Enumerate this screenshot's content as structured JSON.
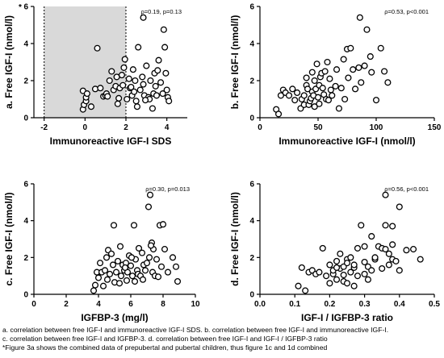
{
  "chart_data": [
    {
      "id": "a",
      "type": "scatter",
      "ylabel": "a. Free IGF-I (nmol/l)",
      "ylabel_superscript": "*",
      "xlabel": "Immunoreactive IGF-I SDS",
      "xlim": [
        -2.5,
        5
      ],
      "ylim": [
        0,
        6
      ],
      "xticks": [
        -2,
        0,
        2,
        4
      ],
      "yticks": [
        0,
        2,
        4,
        6
      ],
      "annotation": "ρ=0.19, p=0.13",
      "shaded_region": [
        -2,
        2
      ],
      "shaded_color": "#d9d9d9",
      "points": [
        [
          -0.1,
          0.45
        ],
        [
          -0.05,
          0.7
        ],
        [
          0.05,
          0.9
        ],
        [
          0.05,
          1.1
        ],
        [
          -0.1,
          1.45
        ],
        [
          0.1,
          1.3
        ],
        [
          0.3,
          0.6
        ],
        [
          0.5,
          1.55
        ],
        [
          0.6,
          3.75
        ],
        [
          0.75,
          1.6
        ],
        [
          0.9,
          1.15
        ],
        [
          1.0,
          1.2
        ],
        [
          1.05,
          1.3
        ],
        [
          1.1,
          1.15
        ],
        [
          1.2,
          2.0
        ],
        [
          1.3,
          2.5
        ],
        [
          1.4,
          1.5
        ],
        [
          1.5,
          1.7
        ],
        [
          1.6,
          0.75
        ],
        [
          1.65,
          1.05
        ],
        [
          1.7,
          1.6
        ],
        [
          1.8,
          2.3
        ],
        [
          1.85,
          1.75
        ],
        [
          1.9,
          2.7
        ],
        [
          1.95,
          3.15
        ],
        [
          2.05,
          1.0
        ],
        [
          2.15,
          2.1
        ],
        [
          2.2,
          1.6
        ],
        [
          2.3,
          1.2
        ],
        [
          2.35,
          2.6
        ],
        [
          2.4,
          1.4
        ],
        [
          2.5,
          0.9
        ],
        [
          2.55,
          0.6
        ],
        [
          2.6,
          3.8
        ],
        [
          2.7,
          1.5
        ],
        [
          2.8,
          2.2
        ],
        [
          2.85,
          1.8
        ],
        [
          2.9,
          1.2
        ],
        [
          3.0,
          2.8
        ],
        [
          3.1,
          1.1
        ],
        [
          3.15,
          1.0
        ],
        [
          3.2,
          2.0
        ],
        [
          3.3,
          0.5
        ],
        [
          3.35,
          1.3
        ],
        [
          3.4,
          2.4
        ],
        [
          3.45,
          1.7
        ],
        [
          3.5,
          1.2
        ],
        [
          3.6,
          3.1
        ],
        [
          3.7,
          1.9
        ],
        [
          3.8,
          1.3
        ],
        [
          3.85,
          4.75
        ],
        [
          3.9,
          3.8
        ],
        [
          3.95,
          2.4
        ],
        [
          4.0,
          1.5
        ],
        [
          4.05,
          1.1
        ],
        [
          4.1,
          0.9
        ],
        [
          2.85,
          5.4
        ],
        [
          2.25,
          1.65
        ],
        [
          2.45,
          2.0
        ],
        [
          1.55,
          2.2
        ],
        [
          2.95,
          0.95
        ],
        [
          3.55,
          2.55
        ]
      ]
    },
    {
      "id": "b",
      "type": "scatter",
      "ylabel": "b. Free IGF-I (nmol/l)",
      "xlabel": "Immunoreactive IGF-I (nmol/l)",
      "xlim": [
        0,
        150
      ],
      "ylim": [
        0,
        6
      ],
      "xticks": [
        0,
        50,
        100,
        150
      ],
      "yticks": [
        0,
        2,
        4,
        6
      ],
      "annotation": "ρ=0.53, p<0.001",
      "points": [
        [
          14,
          0.45
        ],
        [
          16,
          0.2
        ],
        [
          18,
          1.2
        ],
        [
          20,
          1.5
        ],
        [
          22,
          1.35
        ],
        [
          25,
          1.2
        ],
        [
          28,
          1.55
        ],
        [
          30,
          0.95
        ],
        [
          32,
          1.35
        ],
        [
          35,
          0.5
        ],
        [
          36,
          1.0
        ],
        [
          38,
          1.2
        ],
        [
          38,
          0.7
        ],
        [
          40,
          1.75
        ],
        [
          40,
          2.15
        ],
        [
          41,
          1.55
        ],
        [
          42,
          0.7
        ],
        [
          43,
          0.9
        ],
        [
          44,
          1.05
        ],
        [
          45,
          1.4
        ],
        [
          45,
          2.45
        ],
        [
          46,
          1.2
        ],
        [
          47,
          0.6
        ],
        [
          47,
          2.0
        ],
        [
          48,
          1.55
        ],
        [
          49,
          2.9
        ],
        [
          50,
          1.1
        ],
        [
          51,
          1.75
        ],
        [
          51,
          0.75
        ],
        [
          52,
          2.2
        ],
        [
          53,
          2.4
        ],
        [
          54,
          1.6
        ],
        [
          55,
          1.25
        ],
        [
          56,
          2.5
        ],
        [
          57,
          1.0
        ],
        [
          58,
          3.0
        ],
        [
          59,
          0.95
        ],
        [
          60,
          2.1
        ],
        [
          61,
          1.5
        ],
        [
          62,
          1.2
        ],
        [
          65,
          1.7
        ],
        [
          66,
          2.6
        ],
        [
          68,
          0.5
        ],
        [
          70,
          1.6
        ],
        [
          72,
          3.15
        ],
        [
          73,
          1.0
        ],
        [
          75,
          3.7
        ],
        [
          76,
          2.15
        ],
        [
          78,
          3.75
        ],
        [
          80,
          2.6
        ],
        [
          82,
          1.55
        ],
        [
          85,
          2.7
        ],
        [
          86,
          5.4
        ],
        [
          87,
          1.9
        ],
        [
          90,
          2.8
        ],
        [
          92,
          4.75
        ],
        [
          95,
          3.3
        ],
        [
          96,
          2.45
        ],
        [
          100,
          0.95
        ],
        [
          104,
          3.75
        ],
        [
          107,
          2.5
        ],
        [
          110,
          1.9
        ]
      ]
    },
    {
      "id": "c",
      "type": "scatter",
      "ylabel": "c. Free IGF-I (nmol/l)",
      "xlabel": "IGFBP-3 (mg/l)",
      "xlim": [
        0,
        10
      ],
      "ylim": [
        0,
        6
      ],
      "xticks": [
        0,
        2,
        4,
        6,
        8,
        10
      ],
      "yticks": [
        0,
        2,
        4,
        6
      ],
      "annotation": "ρ=0.30, p=0.013",
      "points": [
        [
          3.7,
          0.2
        ],
        [
          3.8,
          0.5
        ],
        [
          3.9,
          1.2
        ],
        [
          4.0,
          0.9
        ],
        [
          4.1,
          1.7
        ],
        [
          4.2,
          1.2
        ],
        [
          4.3,
          0.45
        ],
        [
          4.4,
          1.3
        ],
        [
          4.5,
          2.0
        ],
        [
          4.55,
          0.8
        ],
        [
          4.6,
          2.4
        ],
        [
          4.7,
          1.1
        ],
        [
          4.8,
          2.2
        ],
        [
          4.9,
          1.6
        ],
        [
          4.95,
          3.75
        ],
        [
          5.0,
          0.65
        ],
        [
          5.1,
          1.2
        ],
        [
          5.2,
          1.8
        ],
        [
          5.3,
          0.6
        ],
        [
          5.35,
          2.6
        ],
        [
          5.4,
          1.0
        ],
        [
          5.5,
          1.6
        ],
        [
          5.6,
          1.3
        ],
        [
          5.7,
          1.7
        ],
        [
          5.75,
          0.75
        ],
        [
          5.8,
          1.2
        ],
        [
          5.9,
          2.1
        ],
        [
          6.0,
          1.55
        ],
        [
          6.1,
          1.0
        ],
        [
          6.2,
          3.75
        ],
        [
          6.25,
          0.7
        ],
        [
          6.3,
          1.9
        ],
        [
          6.4,
          1.3
        ],
        [
          6.45,
          1.1
        ],
        [
          6.5,
          2.5
        ],
        [
          6.6,
          1.0
        ],
        [
          6.7,
          2.25
        ],
        [
          6.75,
          0.8
        ],
        [
          6.8,
          1.6
        ],
        [
          6.9,
          1.3
        ],
        [
          7.0,
          1.7
        ],
        [
          7.1,
          4.75
        ],
        [
          7.15,
          2.0
        ],
        [
          7.2,
          5.4
        ],
        [
          7.3,
          2.8
        ],
        [
          7.35,
          1.2
        ],
        [
          7.4,
          2.45
        ],
        [
          7.5,
          1.0
        ],
        [
          7.6,
          1.9
        ],
        [
          7.7,
          0.95
        ],
        [
          7.8,
          3.75
        ],
        [
          7.9,
          1.5
        ],
        [
          8.0,
          3.8
        ],
        [
          8.1,
          2.45
        ],
        [
          8.3,
          1.2
        ],
        [
          8.6,
          2.0
        ],
        [
          8.8,
          1.5
        ],
        [
          8.9,
          0.7
        ],
        [
          5.65,
          1.45
        ],
        [
          6.05,
          2.0
        ],
        [
          7.25,
          2.65
        ]
      ]
    },
    {
      "id": "d",
      "type": "scatter",
      "ylabel": "d. Free IGF-I (nmol/l)",
      "xlabel": "IGF-I / IGFBP-3 ratio",
      "xlim": [
        0,
        0.5
      ],
      "ylim": [
        0,
        6
      ],
      "xticks": [
        0.0,
        0.1,
        0.2,
        0.3,
        0.4,
        0.5
      ],
      "xtick_labels": [
        "0.0",
        "0.1",
        "0.2",
        "0.3",
        "0.4",
        "0.5"
      ],
      "yticks": [
        0,
        2,
        4,
        6
      ],
      "annotation": "ρ=0.56, p<0.001",
      "points": [
        [
          0.11,
          0.45
        ],
        [
          0.12,
          1.45
        ],
        [
          0.13,
          0.2
        ],
        [
          0.14,
          1.2
        ],
        [
          0.15,
          1.3
        ],
        [
          0.16,
          1.1
        ],
        [
          0.17,
          1.2
        ],
        [
          0.18,
          2.5
        ],
        [
          0.19,
          1.0
        ],
        [
          0.2,
          1.6
        ],
        [
          0.2,
          0.6
        ],
        [
          0.21,
          1.1
        ],
        [
          0.21,
          1.3
        ],
        [
          0.22,
          1.8
        ],
        [
          0.22,
          0.8
        ],
        [
          0.23,
          1.4
        ],
        [
          0.23,
          2.2
        ],
        [
          0.24,
          0.7
        ],
        [
          0.24,
          1.05
        ],
        [
          0.24,
          1.5
        ],
        [
          0.25,
          1.9
        ],
        [
          0.25,
          0.6
        ],
        [
          0.25,
          1.7
        ],
        [
          0.26,
          1.2
        ],
        [
          0.26,
          2.0
        ],
        [
          0.27,
          0.45
        ],
        [
          0.27,
          1.45
        ],
        [
          0.28,
          2.5
        ],
        [
          0.28,
          1.0
        ],
        [
          0.29,
          3.75
        ],
        [
          0.3,
          1.1
        ],
        [
          0.3,
          1.75
        ],
        [
          0.31,
          0.8
        ],
        [
          0.31,
          1.5
        ],
        [
          0.32,
          3.15
        ],
        [
          0.32,
          1.3
        ],
        [
          0.33,
          1.9
        ],
        [
          0.33,
          2.0
        ],
        [
          0.34,
          2.6
        ],
        [
          0.35,
          1.4
        ],
        [
          0.35,
          2.5
        ],
        [
          0.36,
          5.4
        ],
        [
          0.36,
          3.75
        ],
        [
          0.37,
          2.2
        ],
        [
          0.37,
          1.6
        ],
        [
          0.38,
          1.9
        ],
        [
          0.38,
          2.7
        ],
        [
          0.39,
          1.8
        ],
        [
          0.4,
          4.75
        ],
        [
          0.4,
          1.3
        ],
        [
          0.42,
          2.4
        ],
        [
          0.44,
          2.45
        ],
        [
          0.46,
          1.9
        ],
        [
          0.3,
          2.6
        ],
        [
          0.27,
          1.6
        ],
        [
          0.22,
          1.45
        ],
        [
          0.36,
          2.45
        ],
        [
          0.38,
          3.7
        ]
      ]
    }
  ],
  "caption": {
    "line1": "a. correlation between free IGF-I and immunoreactive IGF-I SDS. b. correlation between free IGF-I and immunoreactive IGF-I.",
    "line2": "c. correlation between free  IGF-I and IGFBP-3. d. correlation between free IGF-I and IGF-I / IGFBP-3 ratio",
    "line3": "*Figure 3a shows the combined data of prepubertal and pubertal children, thus figure 1c and 1d combined"
  }
}
